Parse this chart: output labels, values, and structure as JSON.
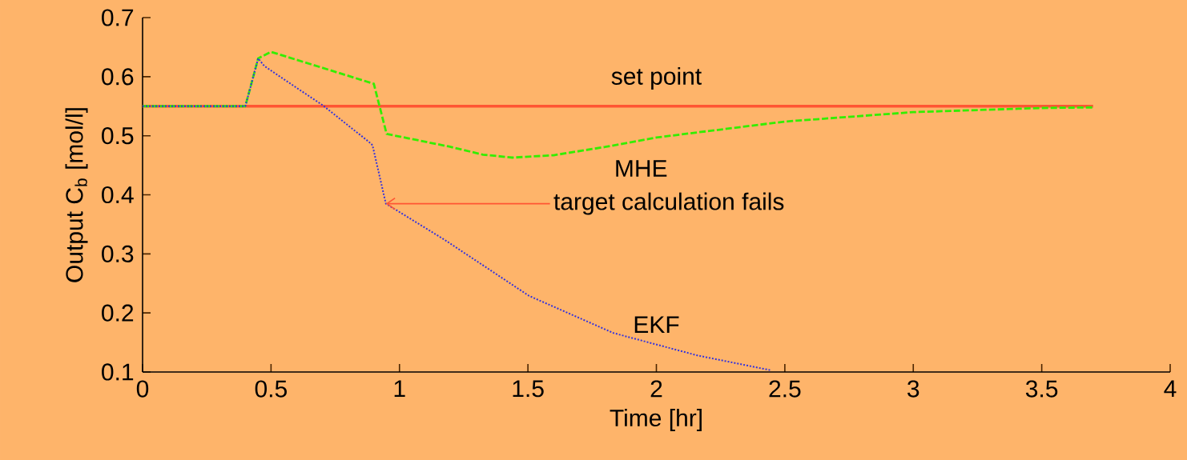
{
  "chart_data": {
    "type": "line",
    "xlabel": "Time [hr]",
    "ylabel": "Output C$_{b}$ [mol/l]",
    "xlim": [
      0,
      4
    ],
    "ylim": [
      0.1,
      0.7
    ],
    "xticks": [
      0,
      0.5,
      1,
      1.5,
      2,
      2.5,
      3,
      3.5,
      4
    ],
    "yticks": [
      0.1,
      0.2,
      0.3,
      0.4,
      0.5,
      0.6,
      0.7
    ],
    "grid": false,
    "legend": false,
    "series": [
      {
        "name": "set point",
        "color": "#ff5533",
        "line_style": "solid",
        "x": [
          0,
          3.7
        ],
        "values": [
          0.55,
          0.55
        ]
      },
      {
        "name": "MHE",
        "color": "#33ee00",
        "line_style": "dashed",
        "x": [
          0,
          0.4,
          0.45,
          0.5,
          0.9,
          0.95,
          1.19,
          1.325,
          1.44,
          1.6,
          1.8,
          2.0,
          2.5,
          3.0,
          3.5,
          3.7
        ],
        "values": [
          0.55,
          0.55,
          0.631,
          0.642,
          0.588,
          0.503,
          0.482,
          0.468,
          0.463,
          0.467,
          0.481,
          0.497,
          0.524,
          0.54,
          0.547,
          0.548
        ]
      },
      {
        "name": "EKF",
        "color": "#3333dd",
        "line_style": "dotted",
        "x": [
          0,
          0.4,
          0.45,
          0.474,
          0.6,
          0.7,
          0.88,
          0.895,
          0.947,
          1.175,
          1.504,
          1.833,
          2.16,
          2.445
        ],
        "values": [
          0.55,
          0.55,
          0.631,
          0.618,
          0.581,
          0.552,
          0.49,
          0.484,
          0.385,
          0.324,
          0.229,
          0.166,
          0.128,
          0.103
        ]
      }
    ],
    "annotations": [
      {
        "text": "target calculation fails",
        "x": 0.947,
        "y": 0.385
      }
    ]
  }
}
